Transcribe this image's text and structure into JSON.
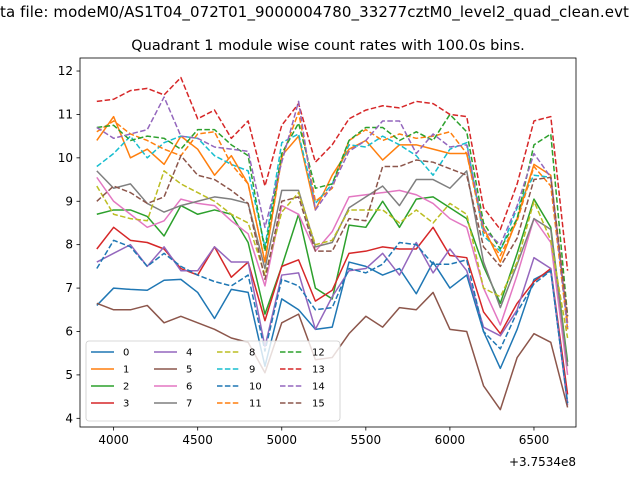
{
  "figure_title": "ta file: modeM0/AS1T04_072T01_9000004780_33277cztM0_level2_quad_clean.evt",
  "chart_data": {
    "type": "line",
    "title": "Quadrant 1 module wise count rates with 100.0s bins.",
    "xlabel": "",
    "ylabel": "",
    "x_offset_label": "+3.7534e8",
    "xlim": [
      3800,
      6750
    ],
    "ylim": [
      3.8,
      12.3
    ],
    "xticks": [
      4000,
      4500,
      5000,
      5500,
      6000,
      6500
    ],
    "yticks": [
      4,
      5,
      6,
      7,
      8,
      9,
      10,
      11,
      12
    ],
    "legend_position": "lower-left",
    "x": [
      3900,
      4000,
      4100,
      4200,
      4300,
      4400,
      4500,
      4600,
      4700,
      4800,
      4900,
      5000,
      5100,
      5200,
      5300,
      5400,
      5500,
      5600,
      5700,
      5800,
      5900,
      6000,
      6100,
      6200,
      6300,
      6400,
      6500,
      6600,
      6700
    ],
    "series": [
      {
        "name": "0",
        "color": "#1f77b4",
        "dash": "solid",
        "values": [
          6.6,
          7.0,
          6.97,
          6.95,
          7.18,
          7.2,
          6.9,
          6.3,
          6.97,
          6.9,
          5.2,
          6.75,
          6.5,
          6.05,
          6.1,
          7.6,
          7.5,
          7.3,
          7.45,
          6.87,
          7.6,
          7.0,
          7.3,
          6.0,
          5.15,
          6.05,
          7.2,
          7.4,
          4.35
        ]
      },
      {
        "name": "1",
        "color": "#ff7f0e",
        "dash": "solid",
        "values": [
          10.4,
          10.95,
          10.0,
          10.2,
          9.85,
          10.5,
          10.2,
          9.6,
          10.05,
          9.4,
          7.6,
          10.05,
          10.5,
          8.8,
          9.6,
          10.2,
          10.4,
          9.95,
          10.3,
          10.3,
          10.2,
          10.1,
          10.1,
          8.4,
          7.6,
          8.6,
          9.85,
          9.6,
          6.2
        ]
      },
      {
        "name": "2",
        "color": "#2ca02c",
        "dash": "solid",
        "values": [
          8.7,
          8.8,
          8.8,
          8.65,
          8.2,
          8.9,
          8.7,
          8.8,
          8.7,
          8.05,
          6.4,
          7.5,
          8.7,
          7.0,
          6.75,
          8.45,
          8.4,
          9.0,
          8.4,
          9.05,
          9.1,
          8.85,
          8.6,
          7.5,
          6.65,
          7.8,
          9.05,
          8.4,
          5.3
        ]
      },
      {
        "name": "3",
        "color": "#d62728",
        "dash": "solid",
        "values": [
          7.9,
          8.4,
          8.1,
          8.05,
          7.9,
          7.45,
          7.3,
          7.95,
          7.25,
          7.6,
          6.25,
          7.5,
          7.65,
          6.7,
          6.95,
          7.8,
          7.85,
          7.95,
          7.9,
          7.9,
          8.4,
          7.75,
          7.7,
          6.45,
          5.95,
          6.65,
          7.15,
          7.45,
          4.55
        ]
      },
      {
        "name": "4",
        "color": "#9467bd",
        "dash": "solid",
        "values": [
          7.6,
          7.8,
          8.0,
          7.5,
          7.95,
          7.4,
          7.4,
          7.95,
          7.6,
          7.6,
          5.65,
          7.3,
          7.35,
          6.05,
          6.8,
          7.4,
          7.45,
          7.8,
          7.3,
          8.05,
          7.35,
          7.9,
          7.4,
          6.1,
          5.9,
          6.5,
          7.7,
          7.45,
          4.3
        ]
      },
      {
        "name": "5",
        "color": "#8c564b",
        "dash": "solid",
        "values": [
          6.65,
          6.5,
          6.5,
          6.6,
          6.2,
          6.35,
          6.2,
          6.05,
          5.85,
          5.75,
          5.05,
          6.2,
          6.4,
          5.35,
          5.4,
          5.95,
          6.35,
          6.1,
          6.55,
          6.5,
          6.9,
          6.05,
          6.0,
          4.75,
          4.2,
          5.4,
          5.95,
          5.75,
          4.25
        ]
      },
      {
        "name": "6",
        "color": "#e377c2",
        "dash": "solid",
        "values": [
          9.55,
          9.0,
          8.7,
          8.4,
          8.55,
          9.05,
          8.95,
          8.9,
          8.55,
          8.25,
          7.05,
          8.9,
          8.7,
          7.85,
          8.3,
          9.1,
          9.15,
          9.2,
          9.25,
          9.15,
          8.95,
          8.6,
          8.4,
          7.0,
          6.15,
          7.3,
          8.6,
          8.05,
          5.0
        ]
      },
      {
        "name": "7",
        "color": "#7f7f7f",
        "dash": "solid",
        "values": [
          9.7,
          9.3,
          9.4,
          8.95,
          8.75,
          8.9,
          9.0,
          9.1,
          9.05,
          8.95,
          7.45,
          9.25,
          9.25,
          7.95,
          8.05,
          8.85,
          9.1,
          9.35,
          8.9,
          9.5,
          9.5,
          9.3,
          9.7,
          7.6,
          6.55,
          7.55,
          8.6,
          8.35,
          5.2
        ]
      },
      {
        "name": "8",
        "color": "#bcbd22",
        "dash": "dashed",
        "values": [
          9.35,
          8.7,
          8.6,
          8.55,
          9.7,
          9.4,
          9.2,
          9.0,
          8.7,
          8.5,
          7.3,
          8.75,
          9.2,
          8.0,
          8.1,
          8.8,
          8.8,
          8.8,
          8.5,
          8.8,
          8.5,
          8.95,
          8.7,
          7.0,
          6.8,
          7.6,
          9.0,
          8.1,
          5.85
        ]
      },
      {
        "name": "9",
        "color": "#17becf",
        "dash": "dashed",
        "values": [
          9.8,
          10.1,
          10.5,
          10.0,
          10.35,
          10.5,
          10.45,
          10.05,
          9.85,
          9.7,
          7.95,
          10.35,
          10.55,
          8.95,
          9.4,
          10.3,
          10.25,
          10.5,
          10.3,
          10.05,
          9.6,
          10.2,
          10.35,
          8.2,
          7.85,
          8.85,
          9.6,
          9.55,
          6.05
        ]
      },
      {
        "name": "10",
        "color": "#1f77b4",
        "dash": "dashed",
        "values": [
          7.45,
          8.1,
          7.95,
          7.5,
          7.8,
          7.5,
          7.3,
          7.15,
          7.05,
          7.3,
          5.55,
          7.2,
          7.05,
          6.5,
          6.55,
          7.45,
          7.35,
          7.55,
          8.05,
          8.0,
          7.55,
          7.55,
          7.65,
          6.0,
          5.6,
          6.45,
          7.1,
          7.4,
          4.35
        ]
      },
      {
        "name": "11",
        "color": "#ff7f0e",
        "dash": "dashed",
        "values": [
          10.6,
          10.85,
          10.55,
          10.4,
          10.2,
          10.05,
          10.55,
          10.6,
          9.85,
          9.4,
          7.6,
          10.0,
          11.05,
          9.0,
          9.3,
          10.4,
          10.65,
          10.4,
          10.55,
          10.45,
          10.5,
          10.6,
          10.1,
          8.3,
          7.75,
          8.55,
          9.8,
          9.35,
          6.05
        ]
      },
      {
        "name": "12",
        "color": "#2ca02c",
        "dash": "dashed",
        "values": [
          10.7,
          10.75,
          10.4,
          10.5,
          10.45,
          10.2,
          10.65,
          10.65,
          10.3,
          10.05,
          7.85,
          10.1,
          10.8,
          9.3,
          9.4,
          10.4,
          10.7,
          10.7,
          10.4,
          10.6,
          10.4,
          11.0,
          10.6,
          8.5,
          7.9,
          8.6,
          10.3,
          10.55,
          6.35
        ]
      },
      {
        "name": "13",
        "color": "#d62728",
        "dash": "dashed",
        "values": [
          11.3,
          11.35,
          11.55,
          11.6,
          11.45,
          11.85,
          10.9,
          11.1,
          10.45,
          10.85,
          9.35,
          10.75,
          11.25,
          9.9,
          10.3,
          10.9,
          11.1,
          11.2,
          11.15,
          11.3,
          11.25,
          11.0,
          10.95,
          8.85,
          8.35,
          9.4,
          10.85,
          10.95,
          7.4
        ]
      },
      {
        "name": "14",
        "color": "#9467bd",
        "dash": "dashed",
        "values": [
          10.7,
          10.45,
          10.55,
          10.65,
          11.4,
          10.5,
          10.45,
          10.25,
          10.2,
          10.15,
          8.4,
          9.9,
          11.3,
          8.8,
          9.35,
          10.15,
          10.4,
          10.85,
          10.85,
          10.1,
          10.55,
          10.25,
          10.3,
          8.35,
          8.0,
          8.9,
          10.1,
          9.55,
          6.1
        ]
      },
      {
        "name": "15",
        "color": "#8c564b",
        "dash": "dashed",
        "values": [
          9.0,
          9.35,
          9.2,
          8.95,
          9.1,
          10.05,
          9.6,
          9.5,
          9.25,
          8.95,
          7.2,
          9.0,
          9.1,
          7.85,
          7.85,
          8.6,
          8.55,
          9.8,
          9.8,
          9.95,
          9.9,
          9.75,
          9.6,
          7.95,
          7.5,
          8.15,
          9.5,
          9.55,
          6.35
        ]
      }
    ]
  }
}
